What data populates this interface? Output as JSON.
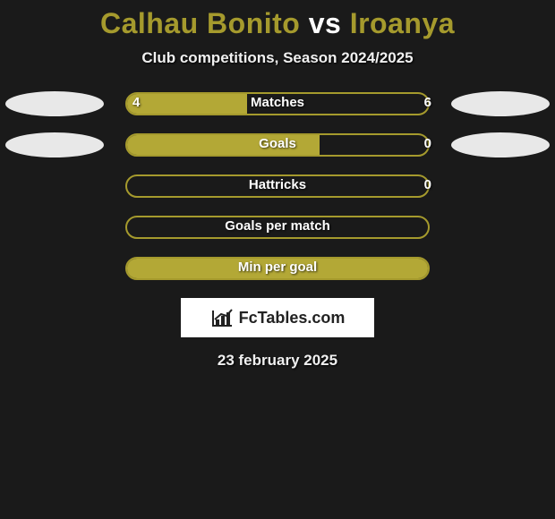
{
  "title_parts": {
    "p1": "Calhau Bonito",
    "vs": " vs ",
    "p2": "Iroanya"
  },
  "title_colors": {
    "p1": "#a59a2d",
    "vs": "#ffffff",
    "p2": "#a59a2d"
  },
  "subtitle": "Club competitions, Season 2024/2025",
  "brand_color": "#a59a2d",
  "bar_fill_color": "#b3a836",
  "background_color": "#1a1a1a",
  "avatar_color": "#e8e8e8",
  "rows": [
    {
      "label": "Matches",
      "left": "4",
      "right": "6",
      "fill_pct": 40,
      "show_values": true,
      "show_avatars": true
    },
    {
      "label": "Goals",
      "left": "",
      "right": "0",
      "fill_pct": 64,
      "show_values": true,
      "show_avatars": true
    },
    {
      "label": "Hattricks",
      "left": "",
      "right": "0",
      "fill_pct": 0,
      "show_values": true,
      "show_avatars": false
    },
    {
      "label": "Goals per match",
      "left": "",
      "right": "",
      "fill_pct": 0,
      "show_values": false,
      "show_avatars": false
    },
    {
      "label": "Min per goal",
      "left": "",
      "right": "",
      "fill_pct": 100,
      "show_values": false,
      "show_avatars": false
    }
  ],
  "logo": {
    "fc": "Fc",
    "tables": "Tables",
    "dotcom": ".com"
  },
  "date": "23 february 2025"
}
